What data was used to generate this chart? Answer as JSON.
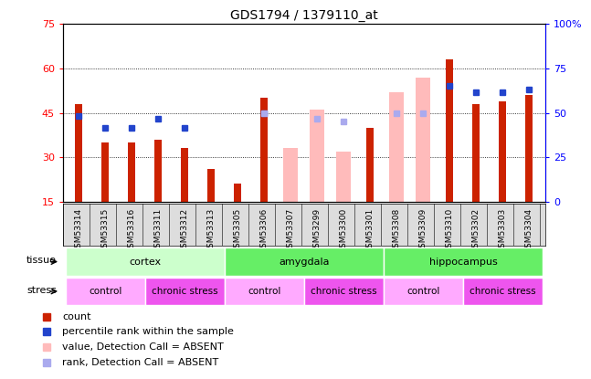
{
  "title": "GDS1794 / 1379110_at",
  "samples": [
    "GSM53314",
    "GSM53315",
    "GSM53316",
    "GSM53311",
    "GSM53312",
    "GSM53313",
    "GSM53305",
    "GSM53306",
    "GSM53307",
    "GSM53299",
    "GSM53300",
    "GSM53301",
    "GSM53308",
    "GSM53309",
    "GSM53310",
    "GSM53302",
    "GSM53303",
    "GSM53304"
  ],
  "count_values": [
    48,
    35,
    35,
    36,
    33,
    26,
    21,
    50,
    null,
    null,
    null,
    40,
    null,
    null,
    63,
    48,
    49,
    51
  ],
  "percentile_values": [
    44,
    40,
    40,
    43,
    40,
    null,
    null,
    45,
    null,
    null,
    null,
    null,
    null,
    null,
    54,
    52,
    52,
    53
  ],
  "absent_value_values": [
    null,
    null,
    null,
    null,
    null,
    null,
    null,
    null,
    33,
    46,
    32,
    null,
    52,
    57,
    null,
    null,
    null,
    null
  ],
  "absent_rank_values": [
    null,
    null,
    null,
    null,
    null,
    null,
    null,
    45,
    null,
    43,
    42,
    null,
    45,
    45,
    null,
    null,
    null,
    null
  ],
  "bar_width": 0.55,
  "count_color": "#cc2200",
  "percentile_color": "#2244cc",
  "absent_value_color": "#ffbbbb",
  "absent_rank_color": "#aaaaee",
  "ylim_left": [
    15,
    75
  ],
  "ylim_right": [
    0,
    100
  ],
  "yticks_left": [
    15,
    30,
    45,
    60,
    75
  ],
  "yticks_right": [
    0,
    25,
    50,
    75,
    100
  ],
  "ytick_labels_right": [
    "0",
    "25",
    "50",
    "75",
    "100%"
  ],
  "tissue_groups": [
    {
      "label": "cortex",
      "start": 0,
      "end": 6,
      "color": "#ccffcc"
    },
    {
      "label": "amygdala",
      "start": 6,
      "end": 12,
      "color": "#66ee66"
    },
    {
      "label": "hippocampus",
      "start": 12,
      "end": 18,
      "color": "#66ee66"
    }
  ],
  "stress_groups": [
    {
      "label": "control",
      "start": 0,
      "end": 3,
      "color": "#ffaaff"
    },
    {
      "label": "chronic stress",
      "start": 3,
      "end": 6,
      "color": "#ee55ee"
    },
    {
      "label": "control",
      "start": 6,
      "end": 9,
      "color": "#ffaaff"
    },
    {
      "label": "chronic stress",
      "start": 9,
      "end": 12,
      "color": "#ee55ee"
    },
    {
      "label": "control",
      "start": 12,
      "end": 15,
      "color": "#ffaaff"
    },
    {
      "label": "chronic stress",
      "start": 15,
      "end": 18,
      "color": "#ee55ee"
    }
  ],
  "legend_items": [
    {
      "color": "#cc2200",
      "label": "count"
    },
    {
      "color": "#2244cc",
      "label": "percentile rank within the sample"
    },
    {
      "color": "#ffbbbb",
      "label": "value, Detection Call = ABSENT"
    },
    {
      "color": "#aaaaee",
      "label": "rank, Detection Call = ABSENT"
    }
  ]
}
